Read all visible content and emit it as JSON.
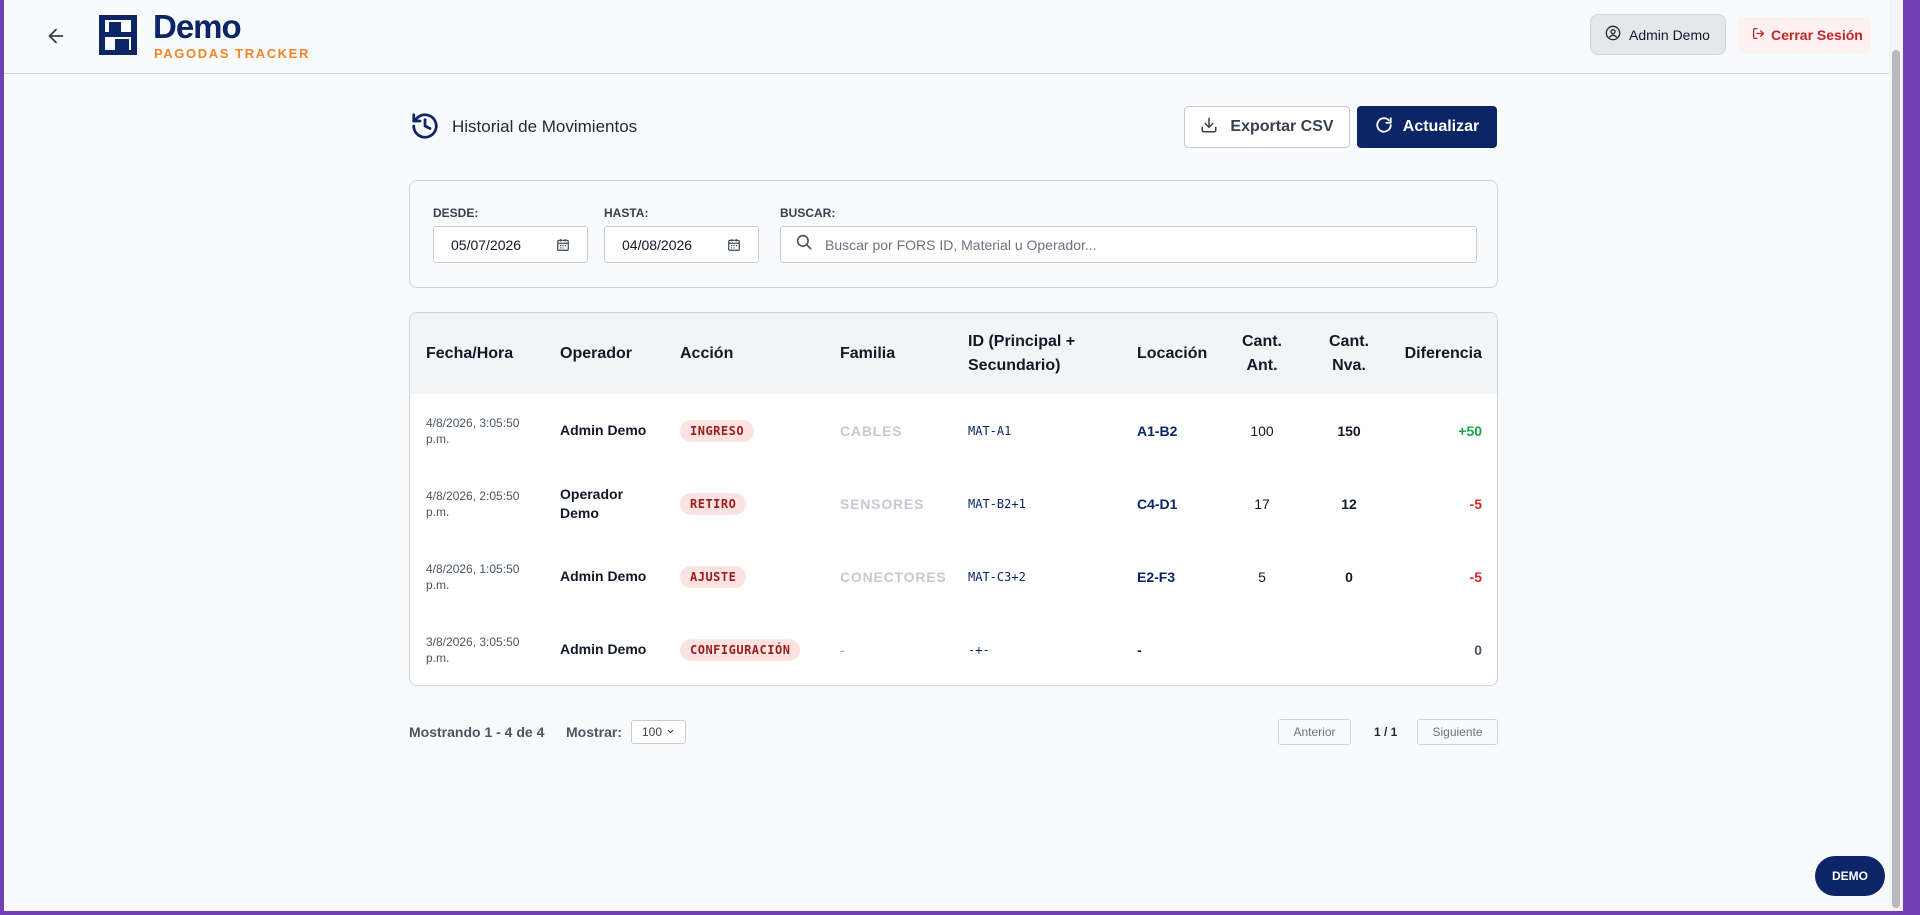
{
  "header": {
    "brand_name": "Demo",
    "brand_sub": "PAGODAS TRACKER",
    "user_label": "Admin Demo",
    "logout_label": "Cerrar Sesión"
  },
  "page": {
    "title": "Historial de Movimientos",
    "export_label": "Exportar CSV",
    "refresh_label": "Actualizar"
  },
  "filters": {
    "from_label": "DESDE:",
    "from_value": "05/07/2026",
    "to_label": "HASTA:",
    "to_value": "04/08/2026",
    "search_label": "BUSCAR:",
    "search_placeholder": "Buscar por FORS ID, Material u Operador..."
  },
  "table": {
    "headers": {
      "date": "Fecha/Hora",
      "operator": "Operador",
      "action": "Acción",
      "family": "Familia",
      "id": "ID (Principal + Secundario)",
      "location": "Locación",
      "qty_before": "Cant. Ant.",
      "qty_new": "Cant. Nva.",
      "diff": "Diferencia"
    },
    "rows": [
      {
        "date": "4/8/2026, 3:05:50 p.m.",
        "operator": "Admin Demo",
        "action": "INGRESO",
        "family": "CABLES",
        "id": "MAT-A1",
        "location": "A1-B2",
        "qty_before": "100",
        "qty_new": "150",
        "diff": "+50",
        "diff_color": "#16a34a"
      },
      {
        "date": "4/8/2026, 2:05:50 p.m.",
        "operator": "Operador Demo",
        "action": "RETIRO",
        "family": "SENSORES",
        "id": "MAT-B2+1",
        "location": "C4-D1",
        "qty_before": "17",
        "qty_new": "12",
        "diff": "-5",
        "diff_color": "#dc2626"
      },
      {
        "date": "4/8/2026, 1:05:50 p.m.",
        "operator": "Admin Demo",
        "action": "AJUSTE",
        "family": "CONECTORES",
        "id": "MAT-C3+2",
        "location": "E2-F3",
        "qty_before": "5",
        "qty_new": "0",
        "diff": "-5",
        "diff_color": "#dc2626"
      },
      {
        "date": "3/8/2026, 3:05:50 p.m.",
        "operator": "Admin Demo",
        "action": "CONFIGURACIÓN",
        "family": "-",
        "id": "-+-",
        "location": "-",
        "qty_before": "",
        "qty_new": "",
        "diff": "0",
        "diff_color": "#4b5563"
      }
    ]
  },
  "pagination": {
    "showing": "Mostrando 1 - 4 de 4",
    "show_label": "Mostrar:",
    "page_size": "100",
    "prev_label": "Anterior",
    "page_indicator": "1 / 1",
    "next_label": "Siguiente"
  },
  "demo_badge": "DEMO",
  "colors": {
    "brand_navy": "#0b2566",
    "brand_orange": "#f0852a",
    "logout_red": "#c02626",
    "positive": "#16a34a",
    "negative": "#dc2626"
  }
}
